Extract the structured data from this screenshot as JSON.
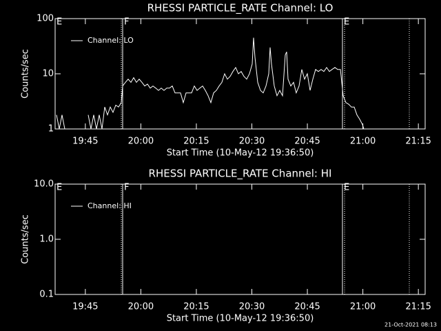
{
  "charts": [
    {
      "type": "line",
      "title": "RHESSI PARTICLE_RATE Channel: LO",
      "xlabel": "Start Time (10-May-12 19:36:50)",
      "ylabel": "Counts/sec",
      "log_y": true,
      "xlim": [
        0,
        6000
      ],
      "ylim": [
        1,
        100
      ],
      "xticks": [
        {
          "value": 490,
          "label": "19:45"
        },
        {
          "value": 1390,
          "label": "20:00"
        },
        {
          "value": 2290,
          "label": "20:15"
        },
        {
          "value": 3190,
          "label": "20:30"
        },
        {
          "value": 4090,
          "label": "20:45"
        },
        {
          "value": 4990,
          "label": "21:00"
        },
        {
          "value": 5890,
          "label": "21:15"
        }
      ],
      "yticks": [
        1,
        10,
        100
      ],
      "flags": [
        {
          "x": 0,
          "label": "E"
        },
        {
          "x": 1095,
          "label": "F"
        },
        {
          "x": 4659,
          "label": "E"
        }
      ],
      "dotted_lines": [
        1073,
        4693,
        5743
      ],
      "series": [
        {
          "name": "Channel: LO",
          "color": "#ffffff",
          "x": [
            22,
            67,
            112,
            156,
            335,
            536,
            581,
            626,
            670,
            715,
            760,
            804,
            849,
            894,
            939,
            983,
            1028,
            1073,
            1095,
            1140,
            1184,
            1229,
            1274,
            1318,
            1363,
            1408,
            1453,
            1497,
            1542,
            1587,
            1631,
            1676,
            1721,
            1765,
            1810,
            1855,
            1899,
            1944,
            1989,
            2033,
            2078,
            2123,
            2168,
            2212,
            2257,
            2302,
            2346,
            2391,
            2436,
            2480,
            2525,
            2570,
            2614,
            2659,
            2704,
            2749,
            2793,
            2838,
            2883,
            2927,
            2972,
            3017,
            3061,
            3106,
            3151,
            3195,
            3218,
            3240,
            3285,
            3330,
            3374,
            3419,
            3464,
            3486,
            3508,
            3553,
            3598,
            3642,
            3687,
            3732,
            3754,
            3776,
            3821,
            3866,
            3910,
            3955,
            4000,
            4045,
            4089,
            4134,
            4179,
            4223,
            4268,
            4313,
            4357,
            4402,
            4447,
            4491,
            4536,
            4581,
            4626,
            4670,
            4715,
            4760,
            4805,
            4849,
            4894,
            4939,
            4983,
            5006
          ],
          "values": [
            1.8,
            1,
            1.8,
            1,
            null,
            1.8,
            1,
            1.8,
            1,
            1.8,
            1,
            2.5,
            1.8,
            2.5,
            2,
            2.7,
            2.5,
            3,
            6,
            7,
            8,
            7,
            8.5,
            7,
            8,
            7,
            6,
            6.5,
            5.5,
            6,
            5.5,
            5,
            5.5,
            5,
            5.5,
            5.5,
            6,
            4.5,
            4.5,
            4.5,
            3,
            4.5,
            4.5,
            4.5,
            6,
            5,
            5.5,
            6,
            5,
            4,
            3,
            4.5,
            5,
            6,
            7,
            10,
            8,
            9,
            11,
            13,
            10,
            11,
            9,
            8,
            10,
            15,
            45,
            20,
            7,
            5,
            4.5,
            6,
            10,
            30,
            15,
            6,
            4,
            5,
            4,
            22,
            25,
            8,
            6,
            7,
            4.5,
            6,
            12,
            8,
            10,
            5,
            8,
            12,
            11,
            12,
            11,
            13,
            11,
            12,
            13,
            12,
            12,
            4,
            3,
            2.8,
            2.5,
            2.5,
            1.8,
            1.5,
            1.2,
            1
          ]
        }
      ]
    },
    {
      "type": "line",
      "title": "RHESSI PARTICLE_RATE Channel: HI",
      "xlabel": "Start Time (10-May-12 19:36:50)",
      "ylabel": "Counts/sec",
      "log_y": true,
      "xlim": [
        0,
        6000
      ],
      "ylim": [
        0.1,
        10
      ],
      "xticks": [
        {
          "value": 490,
          "label": "19:45"
        },
        {
          "value": 1390,
          "label": "20:00"
        },
        {
          "value": 2290,
          "label": "20:15"
        },
        {
          "value": 3190,
          "label": "20:30"
        },
        {
          "value": 4090,
          "label": "20:45"
        },
        {
          "value": 4990,
          "label": "21:00"
        },
        {
          "value": 5890,
          "label": "21:15"
        }
      ],
      "yticks": [
        0.1,
        {
          "value": 1,
          "label": "1.0"
        },
        {
          "value": 10,
          "label": "10.0"
        }
      ],
      "flags": [
        {
          "x": 0,
          "label": "E"
        },
        {
          "x": 1095,
          "label": "F"
        },
        {
          "x": 4659,
          "label": "E"
        }
      ],
      "dotted_lines": [
        1073,
        4693,
        5743
      ],
      "series": [
        {
          "name": "Channel: HI",
          "color": "#ffffff",
          "x": [],
          "values": []
        }
      ]
    }
  ],
  "footer": "21-Oct-2021 08:13"
}
